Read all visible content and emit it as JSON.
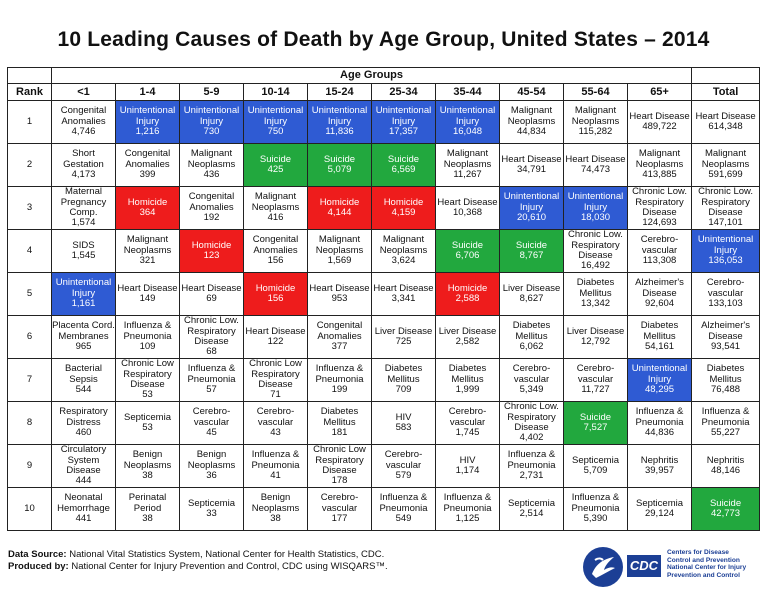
{
  "title": "10 Leading Causes of Death by Age Group, United States – 2014",
  "header": {
    "rank_label": "Rank",
    "age_groups_label": "Age Groups",
    "columns": [
      "<1",
      "1-4",
      "5-9",
      "10-14",
      "15-24",
      "25-34",
      "35-44",
      "45-54",
      "55-64",
      "65+",
      "Total"
    ]
  },
  "colors": {
    "blue": "#2f5bd3",
    "red": "#ee1c1c",
    "green": "#22a83e"
  },
  "rows": [
    {
      "rank": "1",
      "cells": [
        {
          "cause": "Congenital Anomalies",
          "count": "4,746",
          "color": ""
        },
        {
          "cause": "Unintentional Injury",
          "count": "1,216",
          "color": "blue"
        },
        {
          "cause": "Unintentional Injury",
          "count": "730",
          "color": "blue"
        },
        {
          "cause": "Unintentional Injury",
          "count": "750",
          "color": "blue"
        },
        {
          "cause": "Unintentional Injury",
          "count": "11,836",
          "color": "blue"
        },
        {
          "cause": "Unintentional Injury",
          "count": "17,357",
          "color": "blue"
        },
        {
          "cause": "Unintentional Injury",
          "count": "16,048",
          "color": "blue"
        },
        {
          "cause": "Malignant Neoplasms",
          "count": "44,834",
          "color": ""
        },
        {
          "cause": "Malignant Neoplasms",
          "count": "115,282",
          "color": ""
        },
        {
          "cause": "Heart Disease",
          "count": "489,722",
          "color": ""
        },
        {
          "cause": "Heart Disease",
          "count": "614,348",
          "color": ""
        }
      ]
    },
    {
      "rank": "2",
      "cells": [
        {
          "cause": "Short Gestation",
          "count": "4,173",
          "color": ""
        },
        {
          "cause": "Congenital Anomalies",
          "count": "399",
          "color": ""
        },
        {
          "cause": "Malignant Neoplasms",
          "count": "436",
          "color": ""
        },
        {
          "cause": "Suicide",
          "count": "425",
          "color": "green"
        },
        {
          "cause": "Suicide",
          "count": "5,079",
          "color": "green"
        },
        {
          "cause": "Suicide",
          "count": "6,569",
          "color": "green"
        },
        {
          "cause": "Malignant Neoplasms",
          "count": "11,267",
          "color": ""
        },
        {
          "cause": "Heart Disease",
          "count": "34,791",
          "color": ""
        },
        {
          "cause": "Heart Disease",
          "count": "74,473",
          "color": ""
        },
        {
          "cause": "Malignant Neoplasms",
          "count": "413,885",
          "color": ""
        },
        {
          "cause": "Malignant Neoplasms",
          "count": "591,699",
          "color": ""
        }
      ]
    },
    {
      "rank": "3",
      "cells": [
        {
          "cause": "Maternal Pregnancy Comp.",
          "count": "1,574",
          "color": ""
        },
        {
          "cause": "Homicide",
          "count": "364",
          "color": "red"
        },
        {
          "cause": "Congenital Anomalies",
          "count": "192",
          "color": ""
        },
        {
          "cause": "Malignant Neoplasms",
          "count": "416",
          "color": ""
        },
        {
          "cause": "Homicide",
          "count": "4,144",
          "color": "red"
        },
        {
          "cause": "Homicide",
          "count": "4,159",
          "color": "red"
        },
        {
          "cause": "Heart Disease",
          "count": "10,368",
          "color": ""
        },
        {
          "cause": "Unintentional Injury",
          "count": "20,610",
          "color": "blue"
        },
        {
          "cause": "Unintentional Injury",
          "count": "18,030",
          "color": "blue"
        },
        {
          "cause": "Chronic Low. Respiratory Disease",
          "count": "124,693",
          "color": ""
        },
        {
          "cause": "Chronic Low. Respiratory Disease",
          "count": "147,101",
          "color": ""
        }
      ]
    },
    {
      "rank": "4",
      "cells": [
        {
          "cause": "SIDS",
          "count": "1,545",
          "color": ""
        },
        {
          "cause": "Malignant Neoplasms",
          "count": "321",
          "color": ""
        },
        {
          "cause": "Homicide",
          "count": "123",
          "color": "red"
        },
        {
          "cause": "Congenital Anomalies",
          "count": "156",
          "color": ""
        },
        {
          "cause": "Malignant Neoplasms",
          "count": "1,569",
          "color": ""
        },
        {
          "cause": "Malignant Neoplasms",
          "count": "3,624",
          "color": ""
        },
        {
          "cause": "Suicide",
          "count": "6,706",
          "color": "green"
        },
        {
          "cause": "Suicide",
          "count": "8,767",
          "color": "green"
        },
        {
          "cause": "Chronic Low. Respiratory Disease",
          "count": "16,492",
          "color": ""
        },
        {
          "cause": "Cerebro-vascular",
          "count": "113,308",
          "color": ""
        },
        {
          "cause": "Unintentional Injury",
          "count": "136,053",
          "color": "blue"
        }
      ]
    },
    {
      "rank": "5",
      "cells": [
        {
          "cause": "Unintentional Injury",
          "count": "1,161",
          "color": "blue"
        },
        {
          "cause": "Heart Disease",
          "count": "149",
          "color": ""
        },
        {
          "cause": "Heart Disease",
          "count": "69",
          "color": ""
        },
        {
          "cause": "Homicide",
          "count": "156",
          "color": "red"
        },
        {
          "cause": "Heart Disease",
          "count": "953",
          "color": ""
        },
        {
          "cause": "Heart Disease",
          "count": "3,341",
          "color": ""
        },
        {
          "cause": "Homicide",
          "count": "2,588",
          "color": "red"
        },
        {
          "cause": "Liver Disease",
          "count": "8,627",
          "color": ""
        },
        {
          "cause": "Diabetes Mellitus",
          "count": "13,342",
          "color": ""
        },
        {
          "cause": "Alzheimer's Disease",
          "count": "92,604",
          "color": ""
        },
        {
          "cause": "Cerebro-vascular",
          "count": "133,103",
          "color": ""
        }
      ]
    },
    {
      "rank": "6",
      "cells": [
        {
          "cause": "Placenta Cord. Membranes",
          "count": "965",
          "color": ""
        },
        {
          "cause": "Influenza & Pneumonia",
          "count": "109",
          "color": ""
        },
        {
          "cause": "Chronic Low. Respiratory Disease",
          "count": "68",
          "color": ""
        },
        {
          "cause": "Heart Disease",
          "count": "122",
          "color": ""
        },
        {
          "cause": "Congenital Anomalies",
          "count": "377",
          "color": ""
        },
        {
          "cause": "Liver Disease",
          "count": "725",
          "color": ""
        },
        {
          "cause": "Liver Disease",
          "count": "2,582",
          "color": ""
        },
        {
          "cause": "Diabetes Mellitus",
          "count": "6,062",
          "color": ""
        },
        {
          "cause": "Liver Disease",
          "count": "12,792",
          "color": ""
        },
        {
          "cause": "Diabetes Mellitus",
          "count": "54,161",
          "color": ""
        },
        {
          "cause": "Alzheimer's Disease",
          "count": "93,541",
          "color": ""
        }
      ]
    },
    {
      "rank": "7",
      "cells": [
        {
          "cause": "Bacterial Sepsis",
          "count": "544",
          "color": ""
        },
        {
          "cause": "Chronic Low Respiratory Disease",
          "count": "53",
          "color": ""
        },
        {
          "cause": "Influenza & Pneumonia",
          "count": "57",
          "color": ""
        },
        {
          "cause": "Chronic Low Respiratory Disease",
          "count": "71",
          "color": ""
        },
        {
          "cause": "Influenza & Pneumonia",
          "count": "199",
          "color": ""
        },
        {
          "cause": "Diabetes Mellitus",
          "count": "709",
          "color": ""
        },
        {
          "cause": "Diabetes Mellitus",
          "count": "1,999",
          "color": ""
        },
        {
          "cause": "Cerebro-vascular",
          "count": "5,349",
          "color": ""
        },
        {
          "cause": "Cerebro-vascular",
          "count": "11,727",
          "color": ""
        },
        {
          "cause": "Unintentional Injury",
          "count": "48,295",
          "color": "blue"
        },
        {
          "cause": "Diabetes Mellitus",
          "count": "76,488",
          "color": ""
        }
      ]
    },
    {
      "rank": "8",
      "cells": [
        {
          "cause": "Respiratory Distress",
          "count": "460",
          "color": ""
        },
        {
          "cause": "Septicemia",
          "count": "53",
          "color": ""
        },
        {
          "cause": "Cerebro-vascular",
          "count": "45",
          "color": ""
        },
        {
          "cause": "Cerebro-vascular",
          "count": "43",
          "color": ""
        },
        {
          "cause": "Diabetes Mellitus",
          "count": "181",
          "color": ""
        },
        {
          "cause": "HIV",
          "count": "583",
          "color": ""
        },
        {
          "cause": "Cerebro-vascular",
          "count": "1,745",
          "color": ""
        },
        {
          "cause": "Chronic Low. Respiratory Disease",
          "count": "4,402",
          "color": ""
        },
        {
          "cause": "Suicide",
          "count": "7,527",
          "color": "green"
        },
        {
          "cause": "Influenza & Pneumonia",
          "count": "44,836",
          "color": ""
        },
        {
          "cause": "Influenza & Pneumonia",
          "count": "55,227",
          "color": ""
        }
      ]
    },
    {
      "rank": "9",
      "cells": [
        {
          "cause": "Circulatory System Disease",
          "count": "444",
          "color": ""
        },
        {
          "cause": "Benign Neoplasms",
          "count": "38",
          "color": ""
        },
        {
          "cause": "Benign Neoplasms",
          "count": "36",
          "color": ""
        },
        {
          "cause": "Influenza & Pneumonia",
          "count": "41",
          "color": ""
        },
        {
          "cause": "Chronic Low Respiratory Disease",
          "count": "178",
          "color": ""
        },
        {
          "cause": "Cerebro-vascular",
          "count": "579",
          "color": ""
        },
        {
          "cause": "HIV",
          "count": "1,174",
          "color": ""
        },
        {
          "cause": "Influenza & Pneumonia",
          "count": "2,731",
          "color": ""
        },
        {
          "cause": "Septicemia",
          "count": "5,709",
          "color": ""
        },
        {
          "cause": "Nephritis",
          "count": "39,957",
          "color": ""
        },
        {
          "cause": "Nephritis",
          "count": "48,146",
          "color": ""
        }
      ]
    },
    {
      "rank": "10",
      "cells": [
        {
          "cause": "Neonatal Hemorrhage",
          "count": "441",
          "color": ""
        },
        {
          "cause": "Perinatal Period",
          "count": "38",
          "color": ""
        },
        {
          "cause": "Septicemia",
          "count": "33",
          "color": ""
        },
        {
          "cause": "Benign Neoplasms",
          "count": "38",
          "color": ""
        },
        {
          "cause": "Cerebro-vascular",
          "count": "177",
          "color": ""
        },
        {
          "cause": "Influenza & Pneumonia",
          "count": "549",
          "color": ""
        },
        {
          "cause": "Influenza & Pneumonia",
          "count": "1,125",
          "color": ""
        },
        {
          "cause": "Septicemia",
          "count": "2,514",
          "color": ""
        },
        {
          "cause": "Influenza & Pneumonia",
          "count": "5,390",
          "color": ""
        },
        {
          "cause": "Septicemia",
          "count": "29,124",
          "color": ""
        },
        {
          "cause": "Suicide",
          "count": "42,773",
          "color": "green"
        }
      ]
    }
  ],
  "footer": {
    "source_label": "Data Source:",
    "source_text": "National Vital Statistics System, National Center for Health Statistics, CDC.",
    "produced_label": "Produced by:",
    "produced_text": "National Center for Injury Prevention and Control, CDC using WISQARS™."
  },
  "logo": {
    "cdc_mark": "CDC",
    "agency_lines": [
      "Centers for Disease",
      "Control and Prevention",
      "National Center for Injury",
      "Prevention and Control"
    ]
  }
}
